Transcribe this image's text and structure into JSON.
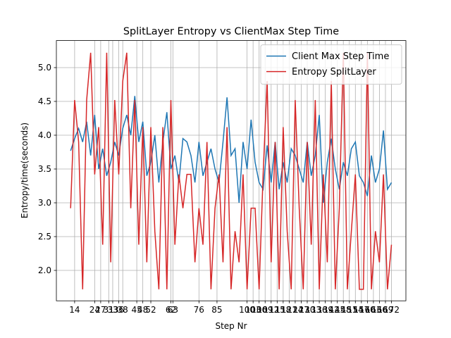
{
  "chart_data": {
    "type": "line",
    "title": "SplitLayer Entropy vs ClientMax Step Time",
    "xlabel": "Step Nr",
    "ylabel": "Entropy/time(seconds)",
    "x": [
      12,
      14,
      16,
      18,
      20,
      22,
      24,
      26,
      28,
      30,
      32,
      34,
      36,
      38,
      40,
      42,
      44,
      46,
      48,
      50,
      52,
      54,
      56,
      58,
      60,
      62,
      64,
      66,
      68,
      70,
      72,
      74,
      76,
      78,
      80,
      82,
      84,
      86,
      88,
      90,
      92,
      94,
      96,
      98,
      100,
      102,
      104,
      106,
      108,
      110,
      112,
      114,
      116,
      118,
      120,
      122,
      124,
      126,
      128,
      130,
      132,
      134,
      136,
      138,
      140,
      142,
      144,
      146,
      148,
      150,
      152,
      154,
      156,
      158,
      160,
      162,
      164,
      166,
      168,
      170,
      172
    ],
    "series": [
      {
        "name": "Client Max Step Time",
        "color": "#1f77b4",
        "values": [
          3.77,
          3.95,
          4.1,
          3.9,
          4.2,
          3.7,
          4.3,
          3.5,
          3.8,
          3.4,
          3.6,
          3.9,
          3.7,
          4.1,
          4.3,
          4.0,
          4.58,
          3.9,
          4.2,
          3.4,
          3.6,
          4.0,
          3.3,
          3.9,
          4.34,
          3.5,
          3.7,
          3.3,
          3.95,
          3.9,
          3.7,
          3.3,
          3.9,
          3.4,
          3.6,
          3.8,
          3.5,
          3.3,
          3.9,
          4.56,
          3.7,
          3.8,
          3.0,
          3.9,
          3.5,
          4.23,
          3.6,
          3.3,
          3.2,
          3.85,
          3.3,
          3.9,
          3.2,
          3.6,
          3.3,
          3.8,
          3.7,
          3.5,
          3.3,
          3.9,
          3.4,
          3.7,
          4.3,
          3.0,
          3.6,
          3.95,
          3.5,
          3.2,
          3.6,
          3.4,
          3.8,
          3.9,
          3.4,
          3.3,
          3.1,
          3.7,
          3.3,
          3.5,
          4.07,
          3.2,
          3.3
        ]
      },
      {
        "name": "Entropy SplitLayer",
        "color": "#d62728",
        "values": [
          2.92,
          4.52,
          3.9,
          1.72,
          4.52,
          5.22,
          3.42,
          4.12,
          2.38,
          5.22,
          2.12,
          4.52,
          3.42,
          4.8,
          5.22,
          2.92,
          4.52,
          2.38,
          4.12,
          2.12,
          4.12,
          2.58,
          1.72,
          4.12,
          1.72,
          4.52,
          2.38,
          3.42,
          2.92,
          3.42,
          3.42,
          2.12,
          2.92,
          2.38,
          3.9,
          1.72,
          2.92,
          3.42,
          2.12,
          4.12,
          1.72,
          2.58,
          2.12,
          3.42,
          1.72,
          2.92,
          2.92,
          1.72,
          3.42,
          4.8,
          2.12,
          3.9,
          1.72,
          4.12,
          2.58,
          1.72,
          4.52,
          2.92,
          1.72,
          3.9,
          2.38,
          4.52,
          1.72,
          3.42,
          2.12,
          4.8,
          1.72,
          2.92,
          5.22,
          1.72,
          2.58,
          3.42,
          1.72,
          1.72,
          5.22,
          1.72,
          2.58,
          2.12,
          3.42,
          1.72,
          2.38
        ]
      }
    ],
    "xlim": [
      4.9,
      179.2
    ],
    "ylim": [
      1.55,
      5.4
    ],
    "xticks": [
      14,
      24,
      27,
      31,
      33,
      36,
      38,
      45,
      48,
      52,
      62,
      63,
      76,
      85,
      100,
      103,
      106,
      109,
      112,
      115,
      118,
      121,
      124,
      127,
      130,
      133,
      136,
      139,
      142,
      145,
      148,
      151,
      154,
      157,
      160,
      163,
      166,
      169,
      172
    ],
    "yticks": [
      {
        "value": 2.0,
        "label": "2.0"
      },
      {
        "value": 2.5,
        "label": "2.5"
      },
      {
        "value": 3.0,
        "label": "3.0"
      },
      {
        "value": 3.5,
        "label": "3.5"
      },
      {
        "value": 4.0,
        "label": "4.0"
      },
      {
        "value": 4.5,
        "label": "4.5"
      },
      {
        "value": 5.0,
        "label": "5.0"
      }
    ],
    "grid": true,
    "legend": "upper right"
  }
}
